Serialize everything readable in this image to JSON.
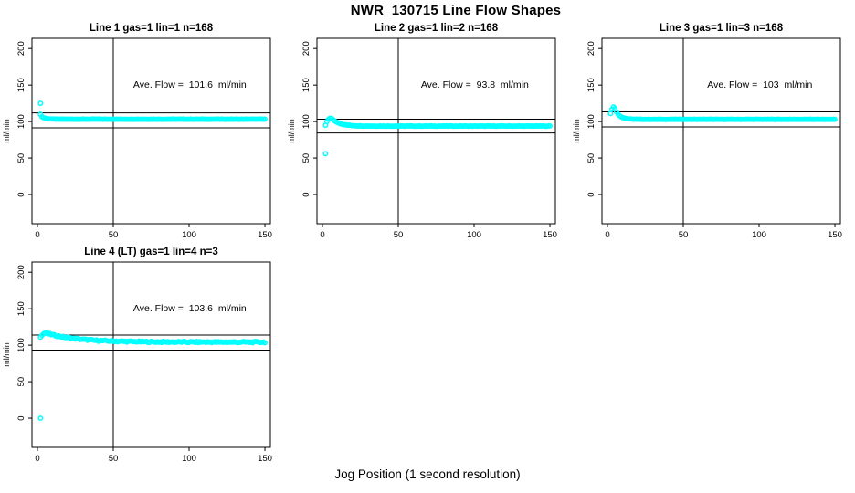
{
  "title": "NWR_130715  Line Flow Shapes",
  "xlabel": "Jog Position (1 second resolution)",
  "colors": {
    "marker": "#00FFFF",
    "axis": "#000000",
    "background": "#FFFFFF",
    "text": "#000000"
  },
  "chart_data": [
    {
      "type": "scatter",
      "title": "Line 1 gas=1 lin=1 n=168",
      "line": 1,
      "gas": 1,
      "lin": 1,
      "n": 168,
      "annotation": "Ave. Flow =  101.6  ml/min",
      "ave_flow_ml_min": 101.6,
      "ylabel": "ml/min",
      "xticks": [
        0,
        50,
        100,
        150
      ],
      "yticks": [
        0,
        50,
        100,
        150,
        200
      ],
      "xlim": [
        -3.6,
        153.6
      ],
      "ylim": [
        -40,
        214
      ],
      "vline_x": 50,
      "hlines": [
        111.8,
        91.4
      ],
      "annotation_pos": [
        100.5,
        150
      ],
      "series": {
        "isolated_points": [
          [
            2,
            125
          ]
        ],
        "lead_points": [
          [
            2,
            110
          ]
        ],
        "decay": {
          "x_start": 3,
          "x_end": 150,
          "y_start": 106.5,
          "y_settle": 103.2,
          "tau": 2.5,
          "jitter": 0.25
        }
      }
    },
    {
      "type": "scatter",
      "title": "Line 2 gas=1 lin=2 n=168",
      "line": 2,
      "gas": 1,
      "lin": 2,
      "n": 168,
      "annotation": "Ave. Flow =  93.8  ml/min",
      "ave_flow_ml_min": 93.8,
      "ylabel": "ml/min",
      "xticks": [
        0,
        50,
        100,
        150
      ],
      "yticks": [
        0,
        50,
        100,
        150,
        200
      ],
      "xlim": [
        -3.6,
        153.6
      ],
      "ylim": [
        -40,
        214
      ],
      "vline_x": 50,
      "hlines": [
        103.2,
        84.4
      ],
      "annotation_pos": [
        100.5,
        150
      ],
      "series": {
        "isolated_points": [
          [
            2,
            95
          ],
          [
            2,
            56
          ]
        ],
        "lead_points": [
          [
            3,
            100
          ],
          [
            4,
            103
          ],
          [
            5,
            104.5
          ]
        ],
        "decay": {
          "x_start": 6,
          "x_end": 150,
          "y_start": 104.5,
          "y_settle": 93.8,
          "tau": 5,
          "jitter": 0.3
        }
      }
    },
    {
      "type": "scatter",
      "title": "Line 3 gas=1 lin=3 n=168",
      "line": 3,
      "gas": 1,
      "lin": 3,
      "n": 168,
      "annotation": "Ave. Flow =  103  ml/min",
      "ave_flow_ml_min": 103,
      "ylabel": "ml/min",
      "xticks": [
        0,
        50,
        100,
        150
      ],
      "yticks": [
        0,
        50,
        100,
        150,
        200
      ],
      "xlim": [
        -3.6,
        153.6
      ],
      "ylim": [
        -40,
        214
      ],
      "vline_x": 50,
      "hlines": [
        113.3,
        92.7
      ],
      "annotation_pos": [
        100.5,
        150
      ],
      "series": {
        "isolated_points": [],
        "lead_points": [
          [
            2,
            111
          ],
          [
            3,
            117
          ],
          [
            4,
            120
          ],
          [
            5,
            118
          ]
        ],
        "decay": {
          "x_start": 6,
          "x_end": 150,
          "y_start": 113,
          "y_settle": 103,
          "tau": 3,
          "jitter": 0.25
        }
      }
    },
    {
      "type": "scatter",
      "title": "Line 4 (LT) gas=1 lin=4 n=3",
      "line": 4,
      "gas": 1,
      "lin": 4,
      "n": 3,
      "annotation": "Ave. Flow =  103.6  ml/min",
      "ave_flow_ml_min": 103.6,
      "ylabel": "ml/min",
      "xticks": [
        0,
        50,
        100,
        150
      ],
      "yticks": [
        0,
        50,
        100,
        150,
        200
      ],
      "xlim": [
        -3.6,
        153.6
      ],
      "ylim": [
        -40,
        214
      ],
      "vline_x": 50,
      "hlines": [
        113.96,
        93.24
      ],
      "annotation_pos": [
        100.5,
        150
      ],
      "series": {
        "isolated_points": [
          [
            2,
            0
          ]
        ],
        "lead_points": [
          [
            2,
            111
          ],
          [
            3,
            113.5
          ],
          [
            4,
            115.5
          ],
          [
            5,
            116.5
          ]
        ],
        "decay": {
          "x_start": 6,
          "x_end": 150,
          "y_start": 116.5,
          "y_settle": 104.2,
          "tau": 20,
          "jitter": 0.9
        }
      }
    }
  ]
}
